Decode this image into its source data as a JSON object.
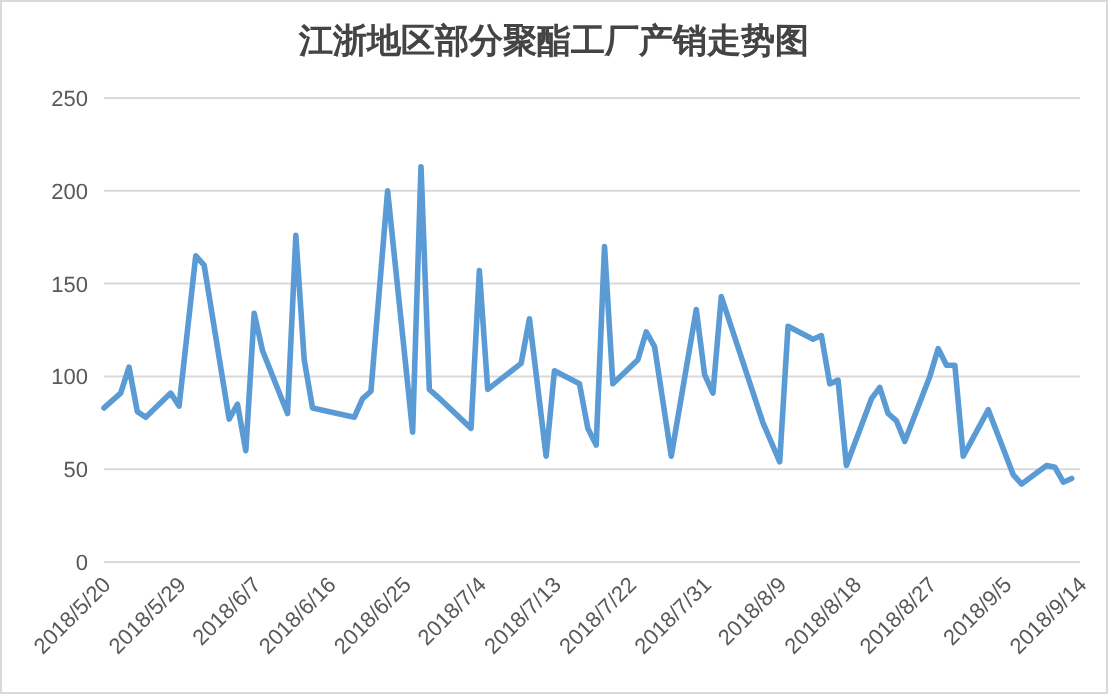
{
  "chart_data": {
    "type": "line",
    "title": "江浙地区部分聚酯工厂产销走势图",
    "x": [
      "2018-05-20",
      "2018-05-22",
      "2018-05-23",
      "2018-05-24",
      "2018-05-25",
      "2018-05-28",
      "2018-05-29",
      "2018-05-31",
      "2018-06-01",
      "2018-06-04",
      "2018-06-05",
      "2018-06-06",
      "2018-06-07",
      "2018-06-08",
      "2018-06-11",
      "2018-06-12",
      "2018-06-13",
      "2018-06-14",
      "2018-06-19",
      "2018-06-20",
      "2018-06-21",
      "2018-06-23",
      "2018-06-26",
      "2018-06-27",
      "2018-06-28",
      "2018-06-29",
      "2018-07-03",
      "2018-07-04",
      "2018-07-05",
      "2018-07-09",
      "2018-07-10",
      "2018-07-12",
      "2018-07-13",
      "2018-07-16",
      "2018-07-17",
      "2018-07-18",
      "2018-07-19",
      "2018-07-20",
      "2018-07-23",
      "2018-07-24",
      "2018-07-25",
      "2018-07-27",
      "2018-07-30",
      "2018-07-31",
      "2018-08-01",
      "2018-08-02",
      "2018-08-07",
      "2018-08-09",
      "2018-08-10",
      "2018-08-13",
      "2018-08-14",
      "2018-08-15",
      "2018-08-16",
      "2018-08-17",
      "2018-08-20",
      "2018-08-21",
      "2018-08-22",
      "2018-08-23",
      "2018-08-24",
      "2018-08-27",
      "2018-08-28",
      "2018-08-29",
      "2018-08-30",
      "2018-08-31",
      "2018-09-03",
      "2018-09-06",
      "2018-09-07",
      "2018-09-10",
      "2018-09-11",
      "2018-09-12",
      "2018-09-13"
    ],
    "values": [
      83,
      91,
      105,
      81,
      78,
      91,
      84,
      165,
      160,
      77,
      85,
      60,
      134,
      114,
      80,
      176,
      109,
      83,
      78,
      88,
      92,
      200,
      70,
      213,
      93,
      89,
      72,
      157,
      93,
      107,
      131,
      57,
      103,
      96,
      72,
      63,
      170,
      96,
      109,
      124,
      116,
      57,
      136,
      101,
      91,
      143,
      75,
      54,
      127,
      120,
      122,
      96,
      98,
      52,
      88,
      94,
      80,
      76,
      65,
      100,
      115,
      106,
      106,
      57,
      82,
      47,
      42,
      52,
      51,
      43,
      45
    ],
    "color": "#5b9bd5",
    "xlim": [
      "2018-05-20",
      "2018-09-14"
    ],
    "xticks": [
      {
        "value": "2018-05-20",
        "label": "2018/5/20"
      },
      {
        "value": "2018-05-29",
        "label": "2018/5/29"
      },
      {
        "value": "2018-06-07",
        "label": "2018/6/7"
      },
      {
        "value": "2018-06-16",
        "label": "2018/6/16"
      },
      {
        "value": "2018-06-25",
        "label": "2018/6/25"
      },
      {
        "value": "2018-07-04",
        "label": "2018/7/4"
      },
      {
        "value": "2018-07-13",
        "label": "2018/7/13"
      },
      {
        "value": "2018-07-22",
        "label": "2018/7/22"
      },
      {
        "value": "2018-07-31",
        "label": "2018/7/31"
      },
      {
        "value": "2018-08-09",
        "label": "2018/8/9"
      },
      {
        "value": "2018-08-18",
        "label": "2018/8/18"
      },
      {
        "value": "2018-08-27",
        "label": "2018/8/27"
      },
      {
        "value": "2018-09-05",
        "label": "2018/9/5"
      },
      {
        "value": "2018-09-14",
        "label": "2018/9/14"
      }
    ],
    "ylim": [
      0,
      250
    ],
    "yticks": [
      0,
      50,
      100,
      150,
      200,
      250
    ],
    "grid": "y"
  }
}
